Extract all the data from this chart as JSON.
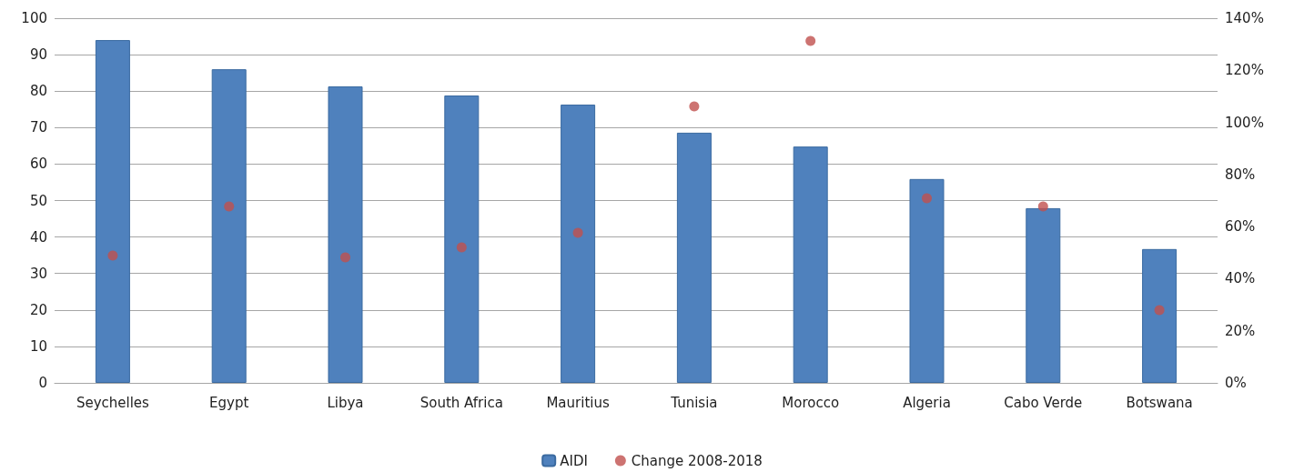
{
  "chart_data": {
    "type": "bar",
    "categories": [
      "Seychelles",
      "Egypt",
      "Libya",
      "South Africa",
      "Mauritius",
      "Tunisia",
      "Morocco",
      "Algeria",
      "Cabo Verde",
      "Botswana"
    ],
    "series": [
      {
        "name": "AIDI",
        "color": "#4f81bd",
        "values": [
          94.0,
          86.0,
          81.3,
          78.8,
          76.3,
          68.6,
          64.8,
          55.9,
          47.9,
          36.7
        ]
      },
      {
        "name": "Change 2008-2018",
        "type": "scatter",
        "axis": "y2",
        "color": "#c0504d",
        "marker": "circle",
        "values": [
          48.9,
          67.7,
          48.2,
          52.0,
          57.6,
          106.1,
          131.3,
          70.9,
          67.7,
          27.9
        ]
      }
    ],
    "ylim": [
      0,
      100
    ],
    "yticks": [
      0,
      10,
      20,
      30,
      40,
      50,
      60,
      70,
      80,
      90,
      100
    ],
    "y2lim": [
      0,
      140
    ],
    "y2ticks": [
      {
        "value": 0,
        "label": "0%"
      },
      {
        "value": 20,
        "label": "20%"
      },
      {
        "value": 40,
        "label": "40%"
      },
      {
        "value": 60,
        "label": "60%"
      },
      {
        "value": 80,
        "label": "80%"
      },
      {
        "value": 100,
        "label": "100%"
      },
      {
        "value": 120,
        "label": "120%"
      },
      {
        "value": 140,
        "label": "140%"
      }
    ],
    "grid": "y",
    "legend": "bottom"
  }
}
